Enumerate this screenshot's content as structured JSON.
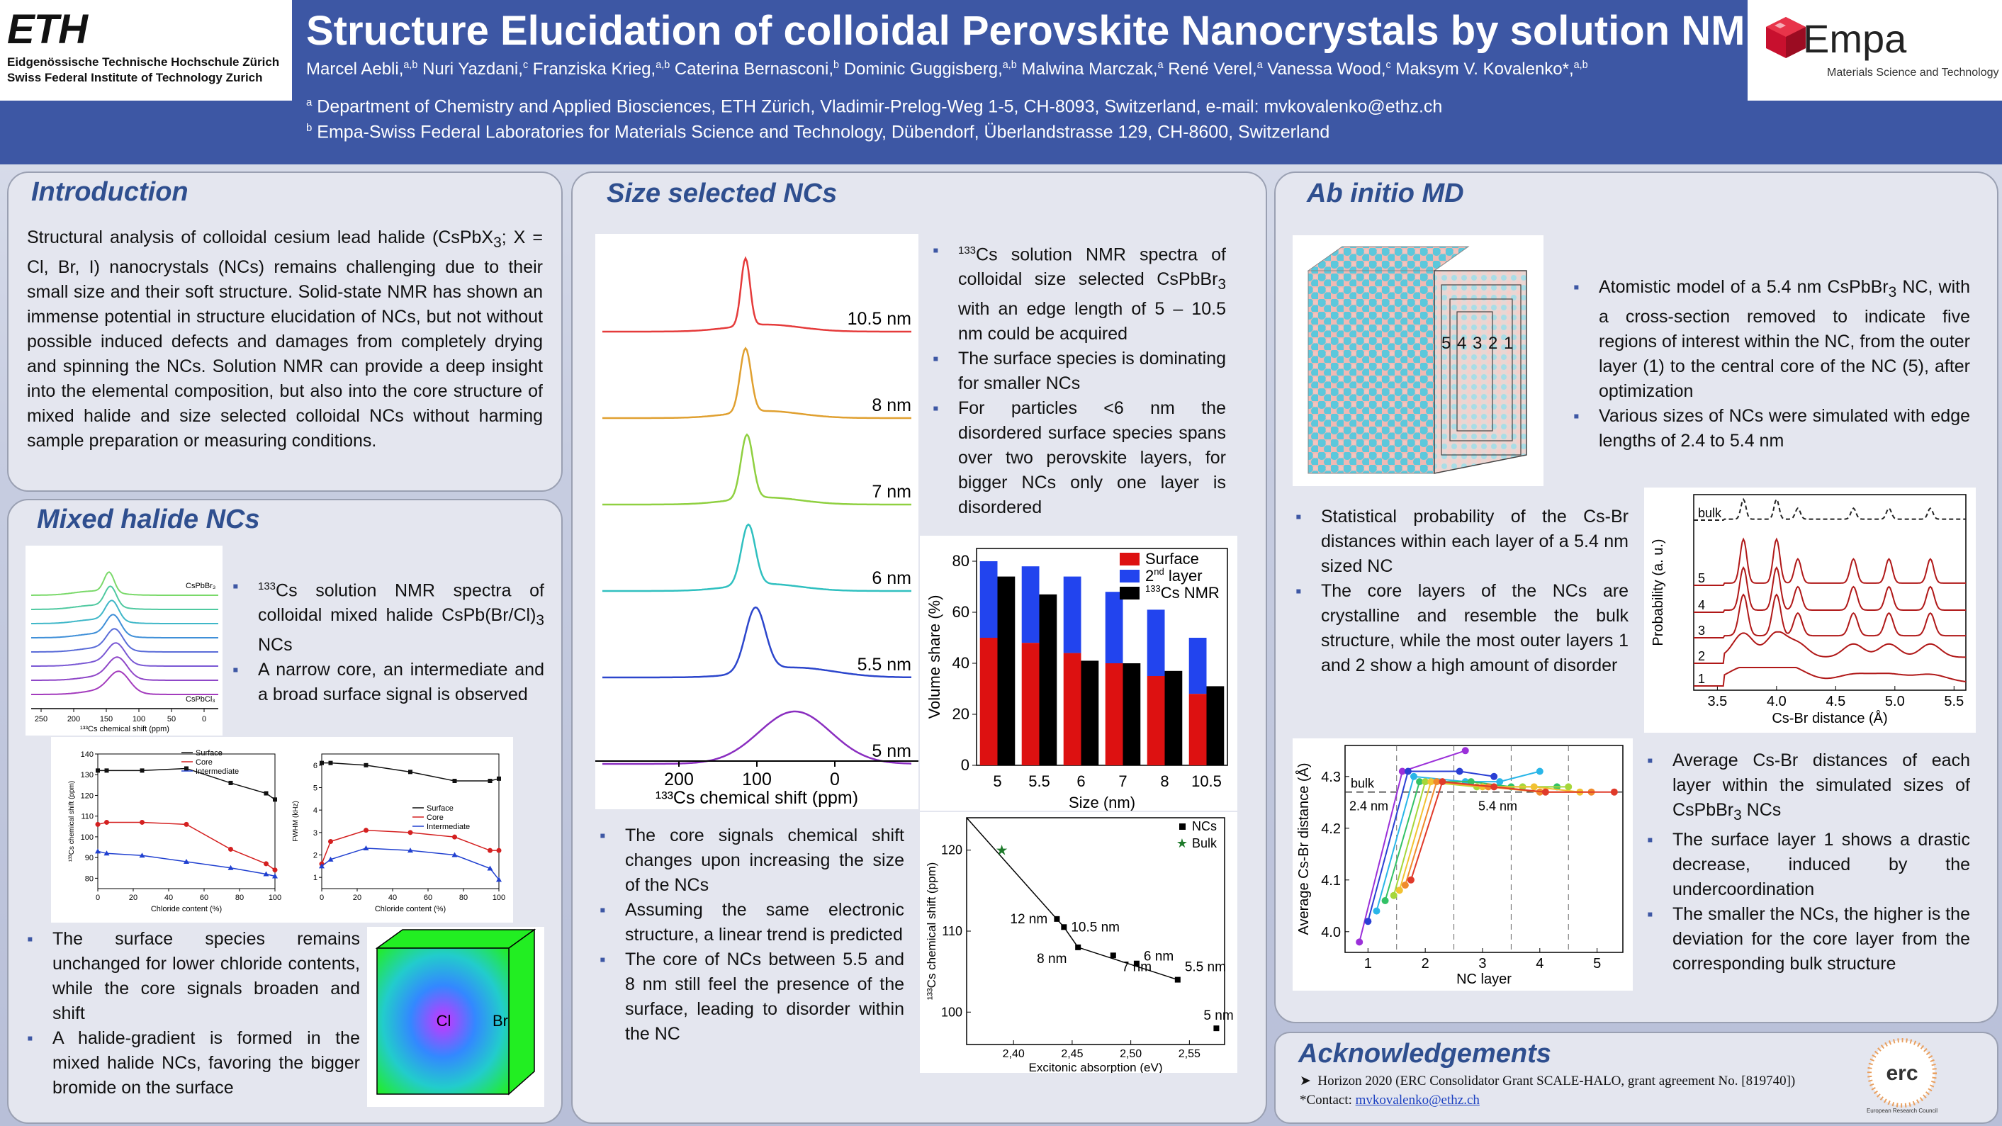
{
  "header": {
    "eth_logo": "ETH",
    "eth_line1": "Eidgenössische Technische Hochschule Zürich",
    "eth_line2": "Swiss Federal Institute of Technology Zurich",
    "title": "Structure Elucidation of colloidal Perovskite Nanocrystals by solution NMR",
    "empa_name": "Empa",
    "empa_sub": "Materials Science and Technology",
    "authors": [
      {
        "name": "Marcel Aebli,",
        "sup": "a,b"
      },
      {
        "name": " Nuri Yazdani,",
        "sup": "c"
      },
      {
        "name": " Franziska Krieg,",
        "sup": "a,b"
      },
      {
        "name": " Caterina Bernasconi,",
        "sup": "b"
      },
      {
        "name": " Dominic Guggisberg,",
        "sup": "a,b"
      },
      {
        "name": " Malwina Marczak,",
        "sup": "a"
      },
      {
        "name": " René Verel,",
        "sup": "a"
      },
      {
        "name": " Vanessa Wood,",
        "sup": "c"
      },
      {
        "name": " Maksym V. Kovalenko*,",
        "sup": "a,b"
      }
    ],
    "affil_a_mark": "a",
    "affil_a": " Department of Chemistry and Applied Biosciences, ETH Zürich, Vladimir-Prelog-Weg 1-5, CH-8093, Switzerland, e-mail: mvkovalenko@ethz.ch",
    "affil_b_mark": "b",
    "affil_b": " Empa-Swiss Federal Laboratories for Materials Science and Technology, Dübendorf, Überlandstrasse 129, CH-8600, Switzerland"
  },
  "intro": {
    "title": "Introduction",
    "p1": "Structural analysis of colloidal cesium lead halide (CsPbX",
    "p1_sub": "3",
    "p1_rest": "; X = Cl, Br, I) nanocrystals (NCs) remains challenging due to their small size and their soft structure. Solid-state NMR has shown an immense potential in structure elucidation of NCs, but not without possible induced defects and damages from completely drying and spinning the NCs. Solution NMR can provide a deep insight into the elemental composition, but also into the core structure of mixed halide and size selected colloidal NCs without harming sample preparation or measuring conditions."
  },
  "mixed": {
    "title": "Mixed halide NCs",
    "spectra_top_label": "CsPbBr₃",
    "spectra_bottom_label": "CsPbCl₃",
    "spectra_xticks": [
      "250",
      "200",
      "150",
      "100",
      "50",
      "0"
    ],
    "spectra_xlabel": "¹³³Cs chemical shift (ppm)",
    "b1_sup": "133",
    "b1": "Cs solution NMR spectra of colloidal mixed halide CsPb(Br/Cl)",
    "b1_sub": "3",
    "b1_end": " NCs",
    "b2": "A narrow core, an intermediate and a broad surface signal is observed",
    "b3": "The surface species remains unchanged for lower chloride contents, while the core signals broaden and shift",
    "b4": "A halide-gradient is formed in the mixed halide NCs, favoring the bigger bromide on the surface",
    "cube_cl": "Cl",
    "cube_br": "Br"
  },
  "chart_shift": {
    "type": "line",
    "xlabel": "Chloride content (%)",
    "ylabel": "¹³³Cs chemical shift (ppm)",
    "xlim": [
      0,
      100
    ],
    "ylim": [
      75,
      140
    ],
    "xticks": [
      "0",
      "20",
      "40",
      "60",
      "80",
      "100"
    ],
    "yticks": [
      "80",
      "90",
      "100",
      "110",
      "120",
      "130",
      "140"
    ],
    "x": [
      0,
      5,
      25,
      50,
      75,
      95,
      100
    ],
    "series": [
      {
        "name": "Surface",
        "values": [
          132,
          132,
          132,
          133,
          126,
          121,
          118
        ],
        "color": "#111111"
      },
      {
        "name": "Core",
        "values": [
          106,
          107,
          107,
          106,
          94,
          87,
          84
        ],
        "color": "#d42020"
      },
      {
        "name": "Intermediate",
        "values": [
          93,
          92,
          91,
          88,
          85,
          82,
          81
        ],
        "color": "#2040d0"
      }
    ]
  },
  "chart_fwhm": {
    "type": "line",
    "xlabel": "Chloride content (%)",
    "ylabel": "FWHM (kHz)",
    "xlim": [
      0,
      100
    ],
    "ylim": [
      0.5,
      6.5
    ],
    "xticks": [
      "0",
      "20",
      "40",
      "60",
      "80",
      "100"
    ],
    "yticks": [
      "1",
      "2",
      "3",
      "4",
      "5",
      "6"
    ],
    "x": [
      0,
      5,
      25,
      50,
      75,
      95,
      100
    ],
    "series": [
      {
        "name": "Surface",
        "values": [
          6.1,
          6.1,
          6.0,
          5.7,
          5.3,
          5.3,
          5.4
        ],
        "color": "#111111"
      },
      {
        "name": "Core",
        "values": [
          1.6,
          2.6,
          3.1,
          3.0,
          2.8,
          2.2,
          2.2
        ],
        "color": "#d42020"
      },
      {
        "name": "Intermediate",
        "values": [
          1.5,
          1.8,
          2.3,
          2.2,
          2.0,
          1.4,
          0.9
        ],
        "color": "#2040d0"
      }
    ]
  },
  "size": {
    "title": "Size selected NCs",
    "spectra_labels": [
      "10.5 nm",
      "8 nm",
      "7 nm",
      "6 nm",
      "5.5 nm",
      "5 nm"
    ],
    "spectra_colors": [
      "#e53b3b",
      "#e0a030",
      "#8fd040",
      "#30c0c0",
      "#2c46cc",
      "#8a2ec0"
    ],
    "spectra_xticks": [
      "200",
      "100",
      "0"
    ],
    "spectra_xlabel": "¹³³Cs chemical shift (ppm)",
    "b1_sup": "133",
    "b1": "Cs solution NMR spectra of colloidal size selected CsPbBr",
    "b1_sub": "3",
    "b1_end": " with an edge length of 5 – 10.5 nm could be acquired",
    "b2": "The surface species is dominating for smaller NCs",
    "b3": "For particles <6 nm the disordered surface species spans over two perovskite layers, for bigger NCs only one layer is disordered",
    "b4": "The core signals chemical shift changes upon increasing the size of the NCs",
    "b5": "Assuming the same electronic structure, a linear trend is predicted",
    "b6": "The core of NCs between 5.5 and 8 nm still feel the presence of the surface, leading to disorder within the NC"
  },
  "chart_volume": {
    "type": "bar",
    "categories": [
      "5",
      "5.5",
      "6",
      "7",
      "8",
      "10.5"
    ],
    "xlabel": "Size (nm)",
    "ylabel": "Volume share (%)",
    "ylim": [
      0,
      85
    ],
    "yticks": [
      "0",
      "20",
      "40",
      "60",
      "80"
    ],
    "series": [
      {
        "name": "Surface",
        "values": [
          50,
          48,
          44,
          40,
          35,
          28
        ],
        "color": "#dd1111"
      },
      {
        "name": "2nd layer",
        "values": [
          30,
          30,
          30,
          28,
          26,
          22
        ],
        "color": "#2244ee"
      },
      {
        "name": "133Cs NMR",
        "values": [
          74,
          67,
          41,
          40,
          37,
          31
        ],
        "color": "#000000"
      }
    ],
    "legend_surface": "Surface",
    "legend_2nd_pre": "2",
    "legend_2nd_sup": "nd",
    "legend_2nd_post": " layer",
    "legend_nmr_sup": "133",
    "legend_nmr_post": "Cs NMR"
  },
  "chart_exciton": {
    "type": "scatter",
    "xlabel": "Excitonic absorption (eV)",
    "ylabel": "¹³³Cs chemical shift (ppm)",
    "xlim": [
      2.36,
      2.58
    ],
    "ylim": [
      96,
      124
    ],
    "xticks": [
      "2,40",
      "2,45",
      "2,50",
      "2,55"
    ],
    "yticks": [
      "100",
      "110",
      "120"
    ],
    "ncs_points": [
      {
        "x": 2.437,
        "y": 111.5,
        "label": "12 nm"
      },
      {
        "x": 2.443,
        "y": 110.5,
        "label": "10.5 nm"
      },
      {
        "x": 2.455,
        "y": 108.0,
        "label": "8 nm"
      },
      {
        "x": 2.485,
        "y": 107.0,
        "label": "7 nm"
      },
      {
        "x": 2.505,
        "y": 106.0,
        "label": "6 nm"
      },
      {
        "x": 2.54,
        "y": 104.0,
        "label": "5.5 nm"
      },
      {
        "x": 2.573,
        "y": 98.0,
        "label": "5 nm"
      }
    ],
    "bulk_point": {
      "x": 2.39,
      "y": 120.0
    },
    "trend": [
      [
        2.36,
        124
      ],
      [
        2.443,
        110.5
      ],
      [
        2.455,
        108.0
      ],
      [
        2.54,
        104.0
      ]
    ],
    "legend_ncs": "NCs",
    "legend_bulk": "Bulk"
  },
  "md": {
    "title": "Ab initio MD",
    "layer_labels": [
      "5",
      "4",
      "3",
      "2",
      "1"
    ],
    "b1": "Atomistic model of a 5.4 nm CsPbBr",
    "b1_sub": "3",
    "b1_end": " NC, with a cross-section removed to indicate five regions of interest within the NC, from the outer layer (1) to the central core of the NC (5), after optimization",
    "b2": "Various sizes of NCs were simulated with edge lengths of 2.4 to 5.4 nm",
    "b3": "Statistical probability of the Cs-Br distances within each layer of a 5.4 nm sized NC",
    "b4": "The core layers of the NCs are crystalline and resemble the bulk structure, while the most outer layers 1 and 2 show a high amount of disorder",
    "b5": "Average Cs-Br distances of each layer within the simulated sizes of CsPbBr",
    "b5_sub": "3",
    "b5_end": " NCs",
    "b6": "The surface layer 1 shows a drastic decrease, induced by the undercoordination",
    "b7": "The smaller the NCs, the higher is the deviation for the core layer from the corresponding bulk structure"
  },
  "chart_prob": {
    "type": "line",
    "xlabel": "Cs-Br distance (Å)",
    "ylabel": "Probability (a. u.)",
    "xlim": [
      3.3,
      5.6
    ],
    "xticks": [
      "3.5",
      "4.0",
      "4.5",
      "5.0",
      "5.5"
    ],
    "trace_labels": [
      "bulk",
      "5",
      "4",
      "3",
      "2",
      "1"
    ]
  },
  "chart_avg": {
    "type": "line",
    "xlabel": "NC layer",
    "ylabel": "Average Cs-Br distance (Å)",
    "xlim": [
      0.6,
      5.45
    ],
    "ylim": [
      3.96,
      4.36
    ],
    "xticks": [
      "1",
      "2",
      "3",
      "4",
      "5"
    ],
    "yticks": [
      "4.0",
      "4.1",
      "4.2",
      "4.3"
    ],
    "bulk_value": 4.27,
    "bulk_label": "bulk",
    "label_small": "2.4 nm",
    "label_large": "5.4 nm",
    "series": [
      {
        "values": [
          [
            0.85,
            3.98
          ],
          [
            1.6,
            4.31
          ],
          [
            2.7,
            4.35
          ]
        ],
        "color": "#9b30d9"
      },
      {
        "values": [
          [
            1.0,
            4.02
          ],
          [
            1.7,
            4.31
          ],
          [
            2.6,
            4.31
          ],
          [
            3.2,
            4.3
          ]
        ],
        "color": "#2a3fd4"
      },
      {
        "values": [
          [
            1.15,
            4.04
          ],
          [
            1.8,
            4.3
          ],
          [
            2.7,
            4.29
          ],
          [
            3.3,
            4.29
          ],
          [
            4.0,
            4.31
          ]
        ],
        "color": "#29b6e8"
      },
      {
        "values": [
          [
            1.3,
            4.06
          ],
          [
            1.9,
            4.29
          ],
          [
            2.8,
            4.29
          ],
          [
            3.5,
            4.28
          ],
          [
            4.3,
            4.28
          ]
        ],
        "color": "#33c266"
      },
      {
        "values": [
          [
            1.45,
            4.07
          ],
          [
            2.0,
            4.29
          ],
          [
            2.9,
            4.28
          ],
          [
            3.7,
            4.28
          ],
          [
            4.5,
            4.28
          ]
        ],
        "color": "#a6d73a"
      },
      {
        "values": [
          [
            1.55,
            4.08
          ],
          [
            2.1,
            4.29
          ],
          [
            3.0,
            4.28
          ],
          [
            3.9,
            4.28
          ],
          [
            4.7,
            4.27
          ]
        ],
        "color": "#f2c232"
      },
      {
        "values": [
          [
            1.65,
            4.09
          ],
          [
            2.2,
            4.29
          ],
          [
            3.1,
            4.28
          ],
          [
            4.0,
            4.27
          ],
          [
            4.9,
            4.27
          ]
        ],
        "color": "#f08a2c"
      },
      {
        "values": [
          [
            1.75,
            4.1
          ],
          [
            2.3,
            4.29
          ],
          [
            3.2,
            4.28
          ],
          [
            4.1,
            4.27
          ],
          [
            5.3,
            4.27
          ]
        ],
        "color": "#e03a2a"
      }
    ]
  },
  "ack": {
    "title": "Acknowledgements",
    "line1": "Horizon 2020 (ERC Consolidator Grant SCALE-HALO, grant agreement No. [819740])",
    "contact_label": "*Contact: ",
    "contact_email": "mvkovalenko@ethz.ch",
    "erc_text": "erc",
    "erc_sub": "European Research Council"
  }
}
